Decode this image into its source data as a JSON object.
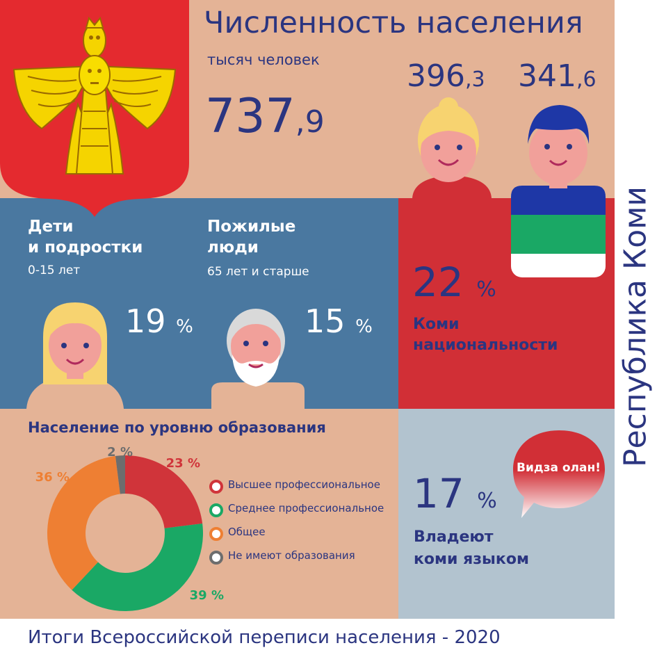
{
  "header": {
    "title": "Численность населения",
    "subtitle": "тысяч человек",
    "total_int": "737",
    "total_dec": ",9",
    "female_int": "396",
    "female_dec": ",3",
    "male_int": "341",
    "male_dec": ",6"
  },
  "side_title": "Республика Коми",
  "children": {
    "label_line1": "Дети",
    "label_line2": "и подростки",
    "age": "0-15 лет",
    "value": "19",
    "unit": "%"
  },
  "elderly": {
    "label_line1": "Пожилые",
    "label_line2": "люди",
    "age": "65 лет и старше",
    "value": "15",
    "unit": "%"
  },
  "komi_nationality": {
    "value": "22",
    "unit": "%",
    "label_line1": "Коми",
    "label_line2": "национальности"
  },
  "education": {
    "title": "Население по уровню образования",
    "legend": [
      {
        "label": "Высшее профессиональное",
        "color": "#d0343a"
      },
      {
        "label": "Среднее профессиональное",
        "color": "#1aa865"
      },
      {
        "label": "Общее",
        "color": "#ee7f33"
      },
      {
        "label": "Не имеют образования",
        "color": "#6d6d6d"
      }
    ]
  },
  "chart_data": {
    "type": "pie",
    "title": "Население по уровню образования",
    "categories": [
      "Высшее профессиональное",
      "Среднее профессиональное",
      "Общее",
      "Не имеют образования"
    ],
    "values": [
      23,
      39,
      36,
      2
    ],
    "labels": [
      "23 %",
      "39 %",
      "36 %",
      "2 %"
    ],
    "colors": [
      "#d0343a",
      "#1aa865",
      "#ee7f33",
      "#6d6d6d"
    ],
    "donut": true,
    "legend_position": "right"
  },
  "komi_language": {
    "bubble_text": "Видза олан!",
    "value": "17",
    "unit": "%",
    "label_line1": "Владеют",
    "label_line2": "коми языком"
  },
  "footer": "Итоги Всероссийской переписи населения - 2020",
  "colors": {
    "peach": "#e4b396",
    "blue": "#4a78a0",
    "red": "#d12f36",
    "grey_blue": "#b2c3cf",
    "navy": "#2b3580",
    "gold": "#f2d600"
  }
}
